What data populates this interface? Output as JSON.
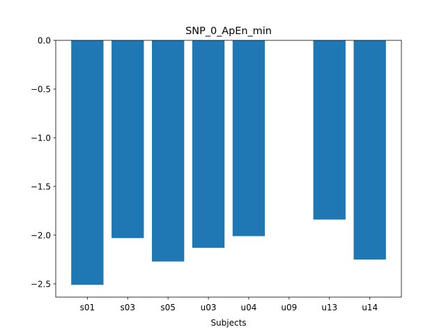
{
  "chart_data": {
    "type": "bar",
    "title": "SNP_0_ApEn_min",
    "xlabel": "Subjects",
    "ylabel": "",
    "categories": [
      "s01",
      "s03",
      "s05",
      "u03",
      "u04",
      "u09",
      "u13",
      "u14"
    ],
    "values": [
      -2.51,
      -2.03,
      -2.27,
      -2.13,
      -2.01,
      0.0,
      -1.84,
      -2.25
    ],
    "ylim": [
      -2.636,
      0.0
    ],
    "yticks": [
      0.0,
      -0.5,
      -1.0,
      -1.5,
      -2.0,
      -2.5
    ],
    "ytick_labels": [
      "0.0",
      "−0.5",
      "−1.0",
      "−1.5",
      "−2.0",
      "−2.5"
    ],
    "grid": false,
    "bar_color": "#1f77b4"
  }
}
